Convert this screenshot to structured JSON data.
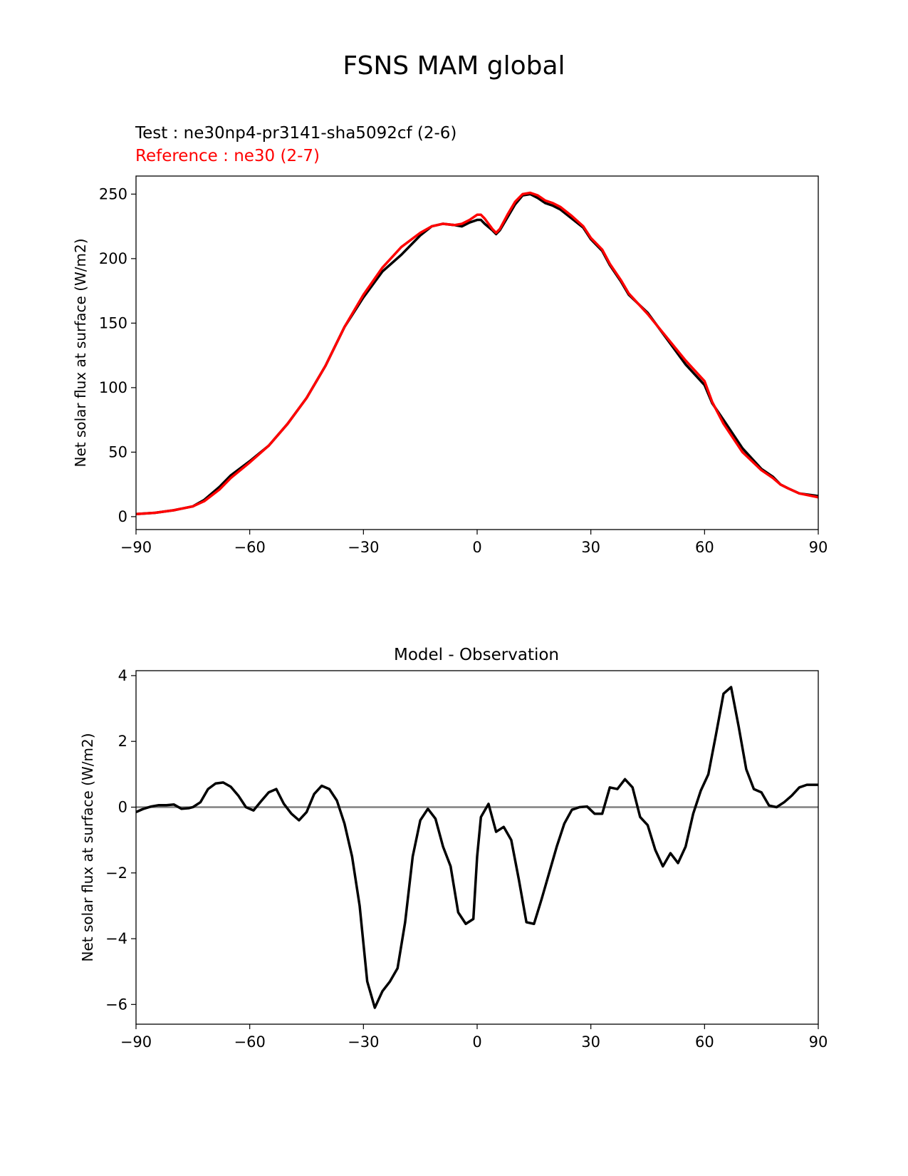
{
  "suptitle": "FSNS MAM global",
  "legend": {
    "test_label": "Test : ne30np4-pr3141-sha5092cf (2-6)",
    "ref_label": "Reference : ne30 (2-7)",
    "test_color": "#000000",
    "ref_color": "#ff0000"
  },
  "chart_data": [
    {
      "type": "line",
      "title": "",
      "xlabel": "",
      "ylabel": "Net solar flux at surface (W/m2)",
      "xlim": [
        -90,
        90
      ],
      "ylim": [
        -10,
        264
      ],
      "xticks": [
        -90,
        -60,
        -30,
        0,
        30,
        60,
        90
      ],
      "xtick_labels": [
        "−90",
        "−60",
        "−30",
        "0",
        "30",
        "60",
        "90"
      ],
      "yticks": [
        0,
        50,
        100,
        150,
        200,
        250
      ],
      "ytick_labels": [
        "0",
        "50",
        "100",
        "150",
        "200",
        "250"
      ],
      "x": [
        -90,
        -85,
        -80,
        -75,
        -72,
        -68,
        -65,
        -60,
        -55,
        -50,
        -45,
        -40,
        -35,
        -30,
        -25,
        -20,
        -15,
        -12,
        -9,
        -6,
        -4,
        -2,
        0,
        1,
        2,
        4,
        5,
        6,
        8,
        10,
        12,
        14,
        16,
        18,
        20,
        22,
        25,
        28,
        30,
        33,
        35,
        38,
        40,
        45,
        50,
        55,
        60,
        62,
        65,
        70,
        75,
        78,
        80,
        82,
        85,
        90
      ],
      "series": [
        {
          "name": "Test : ne30np4-pr3141-sha5092cf (2-6)",
          "color": "#000000",
          "values": [
            2,
            3,
            5,
            8,
            13,
            23,
            32,
            43,
            55,
            72,
            92,
            117,
            147,
            170,
            190,
            203,
            218,
            225,
            227,
            226,
            225,
            228,
            230,
            230,
            227,
            222,
            219,
            222,
            232,
            242,
            249,
            250,
            247,
            243,
            241,
            238,
            231,
            224,
            215,
            206,
            195,
            182,
            172,
            158,
            138,
            118,
            102,
            88,
            75,
            53,
            37,
            31,
            25,
            22,
            18,
            16
          ]
        },
        {
          "name": "Reference : ne30 (2-7)",
          "color": "#ff0000",
          "values": [
            2,
            3,
            5,
            8,
            12,
            21,
            30,
            42,
            55,
            72,
            92,
            117,
            147,
            172,
            193,
            209,
            220,
            225,
            227,
            226,
            227,
            230,
            234,
            234,
            231,
            223,
            220,
            223,
            234,
            244,
            250,
            251,
            249,
            245,
            243,
            240,
            233,
            225,
            216,
            207,
            196,
            183,
            173,
            157,
            139,
            121,
            105,
            89,
            72,
            50,
            36,
            30,
            25,
            22,
            18,
            15
          ]
        }
      ]
    },
    {
      "type": "line",
      "title": "Model - Observation",
      "xlabel": "",
      "ylabel": "Net solar flux at surface (W/m2)",
      "xlim": [
        -90,
        90
      ],
      "ylim": [
        -6.6,
        4.15
      ],
      "xticks": [
        -90,
        -60,
        -30,
        0,
        30,
        60,
        90
      ],
      "xtick_labels": [
        "−90",
        "−60",
        "−30",
        "0",
        "30",
        "60",
        "90"
      ],
      "yticks": [
        -6,
        -4,
        -2,
        0,
        2,
        4
      ],
      "ytick_labels": [
        "−6",
        "−4",
        "−2",
        "0",
        "2",
        "4"
      ],
      "zero_line": true,
      "zero_line_color": "#808080",
      "x": [
        -90,
        -88,
        -86,
        -84,
        -82,
        -80,
        -78,
        -76,
        -75,
        -73,
        -71,
        -69,
        -67,
        -65,
        -63,
        -61,
        -59,
        -57,
        -55,
        -53,
        -51,
        -49,
        -47,
        -45,
        -43,
        -41,
        -39,
        -37,
        -35,
        -33,
        -31,
        -29,
        -27,
        -25,
        -23,
        -21,
        -19,
        -17,
        -15,
        -13,
        -11,
        -9,
        -7,
        -5,
        -3,
        -1,
        0,
        1,
        3,
        5,
        7,
        9,
        11,
        13,
        15,
        17,
        19,
        21,
        23,
        25,
        27,
        29,
        31,
        33,
        35,
        37,
        39,
        41,
        43,
        45,
        47,
        49,
        51,
        53,
        55,
        57,
        59,
        61,
        63,
        65,
        67,
        69,
        71,
        73,
        75,
        77,
        79,
        81,
        83,
        85,
        87,
        89,
        90
      ],
      "series": [
        {
          "name": "Model - Observation",
          "color": "#000000",
          "values": [
            -0.15,
            -0.05,
            0.02,
            0.06,
            0.06,
            0.08,
            -0.05,
            -0.03,
            0.0,
            0.15,
            0.55,
            0.72,
            0.75,
            0.62,
            0.35,
            0.0,
            -0.1,
            0.18,
            0.45,
            0.55,
            0.1,
            -0.2,
            -0.4,
            -0.15,
            0.4,
            0.65,
            0.55,
            0.2,
            -0.5,
            -1.5,
            -3.0,
            -5.3,
            -6.1,
            -5.6,
            -5.3,
            -4.9,
            -3.5,
            -1.5,
            -0.4,
            -0.05,
            -0.35,
            -1.2,
            -1.8,
            -3.2,
            -3.55,
            -3.4,
            -1.5,
            -0.3,
            0.1,
            -0.75,
            -0.6,
            -1.0,
            -2.2,
            -3.5,
            -3.55,
            -2.8,
            -2.0,
            -1.2,
            -0.5,
            -0.08,
            0.0,
            0.02,
            -0.2,
            -0.2,
            0.6,
            0.55,
            0.85,
            0.6,
            -0.3,
            -0.55,
            -1.3,
            -1.8,
            -1.4,
            -1.7,
            -1.2,
            -0.2,
            0.5,
            1.0,
            2.2,
            3.45,
            3.65,
            2.45,
            1.15,
            0.55,
            0.45,
            0.05,
            0.0,
            0.15,
            0.35,
            0.6,
            0.68,
            0.68,
            0.68
          ]
        }
      ]
    }
  ]
}
